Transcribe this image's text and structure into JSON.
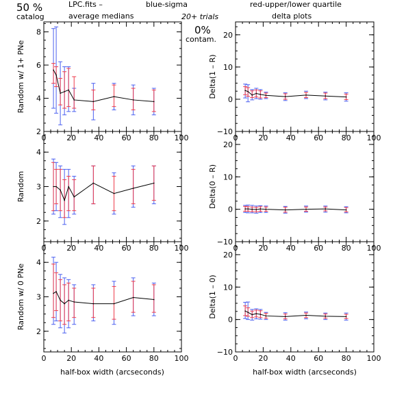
{
  "header": {
    "pct": "50 %",
    "catalog": "catalog",
    "file": "LPC.fits  –",
    "blue_legend": "blue-sigma",
    "red_legend": "red-upper/lower quartile",
    "avg_medians": "average medians",
    "trials": "20+ trials",
    "delta_plots": "delta plots",
    "contam_pct": "0%",
    "contam_label": "contam."
  },
  "colors": {
    "blue": "#4a5ff0",
    "red": "#ee3a4a",
    "line": "#000000",
    "frame": "#000000"
  },
  "x_axis_label": "half-box width (arcseconds)",
  "chart_data": [
    {
      "type": "line",
      "panel": "top-left",
      "title": "",
      "xlabel": "",
      "ylabel": "Random w/ 1+ PNe",
      "xlim": [
        0,
        100
      ],
      "ylim": [
        2,
        8.6
      ],
      "xticks": [
        0,
        20,
        40,
        60,
        80,
        100
      ],
      "xtick_labels": [
        "0",
        "20",
        "40",
        "60",
        "80",
        "100"
      ],
      "yticks": [
        2,
        4,
        6,
        8
      ],
      "ytick_labels": [
        "2",
        "4",
        "6",
        "8"
      ],
      "x": [
        7,
        9,
        12,
        15,
        18,
        22,
        36,
        51,
        65,
        80
      ],
      "y": [
        5.7,
        5.4,
        4.3,
        4.4,
        4.5,
        3.9,
        3.8,
        4.1,
        3.9,
        3.8
      ],
      "blue_sigma": [
        [
          3.4,
          8.2
        ],
        [
          3.1,
          8.3
        ],
        [
          2.4,
          6.2
        ],
        [
          3.0,
          5.9
        ],
        [
          3.2,
          5.9
        ],
        [
          3.2,
          4.6
        ],
        [
          2.7,
          4.9
        ],
        [
          3.3,
          4.9
        ],
        [
          3.0,
          4.8
        ],
        [
          3.0,
          4.6
        ]
      ],
      "red_quartiles": [
        [
          4.9,
          6.1
        ],
        [
          4.7,
          5.9
        ],
        [
          3.6,
          5.2
        ],
        [
          3.4,
          5.6
        ],
        [
          3.5,
          5.8
        ],
        [
          3.4,
          5.3
        ],
        [
          3.3,
          4.5
        ],
        [
          3.5,
          4.8
        ],
        [
          3.3,
          4.6
        ],
        [
          3.2,
          4.5
        ]
      ]
    },
    {
      "type": "line",
      "panel": "top-right",
      "title": "",
      "xlabel": "",
      "ylabel": "Delta(1 – R)",
      "xlim": [
        0,
        100
      ],
      "ylim": [
        -10,
        24
      ],
      "xticks": [
        0,
        20,
        40,
        60,
        80,
        100
      ],
      "xtick_labels": [
        "0",
        "20",
        "40",
        "60",
        "80",
        "100"
      ],
      "yticks": [
        -10,
        0,
        10,
        20
      ],
      "ytick_labels": [
        "−10",
        "0",
        "10",
        "20"
      ],
      "x": [
        7,
        9,
        12,
        15,
        18,
        22,
        36,
        51,
        65,
        80
      ],
      "y": [
        2.7,
        2.4,
        1.3,
        1.8,
        1.5,
        1.2,
        0.8,
        1.3,
        1.0,
        0.7
      ],
      "blue_sigma": [
        [
          0.4,
          4.7
        ],
        [
          -0.8,
          4.5
        ],
        [
          -0.2,
          3.0
        ],
        [
          0.2,
          3.4
        ],
        [
          0.0,
          3.0
        ],
        [
          0.2,
          2.2
        ],
        [
          -0.4,
          2.0
        ],
        [
          0.2,
          2.5
        ],
        [
          -0.2,
          2.2
        ],
        [
          -0.6,
          2.0
        ]
      ],
      "red_quartiles": [
        [
          1.4,
          3.9
        ],
        [
          0.9,
          3.6
        ],
        [
          0.5,
          2.6
        ],
        [
          0.7,
          2.9
        ],
        [
          0.4,
          2.6
        ],
        [
          0.5,
          1.9
        ],
        [
          0.0,
          1.7
        ],
        [
          0.5,
          2.1
        ],
        [
          0.2,
          1.9
        ],
        [
          -0.1,
          1.6
        ]
      ]
    },
    {
      "type": "line",
      "panel": "middle-left",
      "title": "",
      "xlabel": "",
      "ylabel": "Random",
      "xlim": [
        0,
        100
      ],
      "ylim": [
        1.4,
        4.6
      ],
      "xticks": [
        0,
        20,
        40,
        60,
        80,
        100
      ],
      "xtick_labels": [
        "0",
        "20",
        "40",
        "60",
        "80",
        "100"
      ],
      "yticks": [
        2,
        3,
        4
      ],
      "ytick_labels": [
        "2",
        "3",
        "4"
      ],
      "x": [
        7,
        9,
        12,
        15,
        18,
        22,
        36,
        51,
        65,
        80
      ],
      "y": [
        3.0,
        3.0,
        2.9,
        2.6,
        3.0,
        2.7,
        3.1,
        2.8,
        2.95,
        3.1
      ],
      "blue_sigma": [
        [
          2.2,
          3.8
        ],
        [
          2.3,
          3.7
        ],
        [
          2.1,
          3.6
        ],
        [
          1.9,
          3.5
        ],
        [
          2.1,
          3.5
        ],
        [
          2.2,
          3.3
        ],
        [
          2.5,
          3.6
        ],
        [
          2.2,
          3.4
        ],
        [
          2.4,
          3.6
        ],
        [
          2.5,
          3.6
        ]
      ],
      "red_quartiles": [
        [
          2.3,
          3.7
        ],
        [
          2.5,
          3.5
        ],
        [
          2.3,
          3.5
        ],
        [
          2.1,
          3.2
        ],
        [
          2.3,
          3.3
        ],
        [
          2.3,
          3.2
        ],
        [
          2.5,
          3.6
        ],
        [
          2.3,
          3.3
        ],
        [
          2.5,
          3.5
        ],
        [
          2.6,
          3.6
        ]
      ]
    },
    {
      "type": "line",
      "panel": "middle-right",
      "title": "",
      "xlabel": "",
      "ylabel": "Delta(0 – R)",
      "xlim": [
        0,
        100
      ],
      "ylim": [
        -10,
        24
      ],
      "xticks": [
        0,
        20,
        40,
        60,
        80,
        100
      ],
      "xtick_labels": [
        "0",
        "20",
        "40",
        "60",
        "80",
        "100"
      ],
      "yticks": [
        -10,
        0,
        10,
        20
      ],
      "ytick_labels": [
        "−10",
        "0",
        "10",
        "20"
      ],
      "x": [
        7,
        9,
        12,
        15,
        18,
        22,
        36,
        51,
        65,
        80
      ],
      "y": [
        0.1,
        0.1,
        0.0,
        -0.1,
        0.1,
        0.0,
        -0.2,
        0.0,
        0.1,
        -0.2
      ],
      "blue_sigma": [
        [
          -1.0,
          1.2
        ],
        [
          -1.1,
          1.3
        ],
        [
          -1.1,
          1.2
        ],
        [
          -1.2,
          1.0
        ],
        [
          -1.0,
          1.1
        ],
        [
          -1.0,
          1.0
        ],
        [
          -1.2,
          0.9
        ],
        [
          -0.9,
          1.0
        ],
        [
          -0.9,
          1.0
        ],
        [
          -1.1,
          0.8
        ]
      ],
      "red_quartiles": [
        [
          -0.6,
          0.9
        ],
        [
          -0.6,
          0.8
        ],
        [
          -0.7,
          0.7
        ],
        [
          -0.8,
          0.6
        ],
        [
          -0.6,
          0.8
        ],
        [
          -0.6,
          0.7
        ],
        [
          -0.9,
          0.6
        ],
        [
          -0.6,
          0.7
        ],
        [
          -0.5,
          0.7
        ],
        [
          -0.8,
          0.5
        ]
      ]
    },
    {
      "type": "line",
      "panel": "bottom-left",
      "title": "",
      "xlabel": "half-box width (arcseconds)",
      "ylabel": "Random w/ 0 PNe",
      "xlim": [
        0,
        100
      ],
      "ylim": [
        1.4,
        4.6
      ],
      "xticks": [
        0,
        20,
        40,
        60,
        80,
        100
      ],
      "xtick_labels": [
        "0",
        "20",
        "40",
        "60",
        "80",
        "100"
      ],
      "yticks": [
        2,
        3,
        4
      ],
      "ytick_labels": [
        "2",
        "3",
        "4"
      ],
      "x": [
        7,
        9,
        12,
        15,
        18,
        22,
        36,
        51,
        65,
        80
      ],
      "y": [
        3.1,
        3.15,
        2.9,
        2.8,
        2.9,
        2.85,
        2.8,
        2.8,
        2.98,
        2.92
      ],
      "blue_sigma": [
        [
          2.2,
          4.15
        ],
        [
          2.3,
          4.0
        ],
        [
          2.1,
          3.65
        ],
        [
          1.95,
          3.55
        ],
        [
          2.1,
          3.5
        ],
        [
          2.2,
          3.35
        ],
        [
          2.3,
          3.35
        ],
        [
          2.2,
          3.45
        ],
        [
          2.45,
          3.55
        ],
        [
          2.45,
          3.4
        ]
      ],
      "red_quartiles": [
        [
          2.4,
          3.95
        ],
        [
          2.6,
          3.7
        ],
        [
          2.3,
          3.5
        ],
        [
          2.2,
          3.35
        ],
        [
          2.3,
          3.4
        ],
        [
          2.4,
          3.25
        ],
        [
          2.4,
          3.25
        ],
        [
          2.35,
          3.3
        ],
        [
          2.55,
          3.45
        ],
        [
          2.55,
          3.35
        ]
      ]
    },
    {
      "type": "line",
      "panel": "bottom-right",
      "title": "",
      "xlabel": "half-box width (arcseconds)",
      "ylabel": "Delta(1 – 0)",
      "xlim": [
        0,
        100
      ],
      "ylim": [
        -10,
        24
      ],
      "xticks": [
        0,
        20,
        40,
        60,
        80,
        100
      ],
      "xtick_labels": [
        "0",
        "20",
        "40",
        "60",
        "80",
        "100"
      ],
      "yticks": [
        -10,
        0,
        10,
        20
      ],
      "ytick_labels": [
        "−10",
        "0",
        "10",
        "20"
      ],
      "x": [
        7,
        9,
        12,
        15,
        18,
        22,
        36,
        51,
        65,
        80
      ],
      "y": [
        2.6,
        2.2,
        1.5,
        1.8,
        1.6,
        1.1,
        0.9,
        1.3,
        1.0,
        0.9
      ],
      "blue_sigma": [
        [
          0.3,
          5.3
        ],
        [
          0.0,
          5.4
        ],
        [
          -0.2,
          3.1
        ],
        [
          0.2,
          3.3
        ],
        [
          0.1,
          3.1
        ],
        [
          0.0,
          2.2
        ],
        [
          -0.2,
          2.1
        ],
        [
          0.2,
          2.3
        ],
        [
          0.0,
          2.0
        ],
        [
          -0.2,
          2.0
        ]
      ],
      "red_quartiles": [
        [
          1.2,
          4.2
        ],
        [
          1.0,
          3.6
        ],
        [
          0.6,
          2.6
        ],
        [
          0.8,
          2.9
        ],
        [
          0.6,
          2.7
        ],
        [
          0.4,
          1.9
        ],
        [
          0.2,
          1.7
        ],
        [
          0.6,
          2.0
        ],
        [
          0.4,
          1.7
        ],
        [
          0.3,
          1.6
        ]
      ]
    }
  ]
}
